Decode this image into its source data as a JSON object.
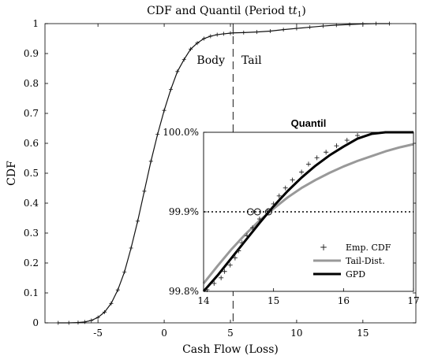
{
  "chart_data": [
    {
      "type": "line",
      "title": "CDF and Quantil (Period t",
      "title_subscript": "1",
      "title_close": ")",
      "xlabel": "Cash Flow (Loss)",
      "ylabel": "CDF",
      "xlim": [
        -9,
        19
      ],
      "ylim": [
        0,
        1
      ],
      "x_ticks": [
        -5,
        0,
        5,
        10,
        15
      ],
      "y_ticks": [
        0,
        0.1,
        0.2,
        0.3,
        0.4,
        0.5,
        0.6,
        0.7,
        0.8,
        0.9,
        1
      ],
      "threshold_x": 5.2,
      "region_labels": {
        "body": "Body",
        "tail": "Tail"
      },
      "series": [
        {
          "marker": "+",
          "x": [
            -8,
            -7.2,
            -6.5,
            -6,
            -5.5,
            -5,
            -4.5,
            -4,
            -3.5,
            -3,
            -2.5,
            -2,
            -1.5,
            -1,
            -0.5,
            0,
            0.5,
            1,
            1.5,
            2,
            2.5,
            3,
            3.5,
            4,
            4.5,
            5,
            5.2,
            6,
            7,
            8,
            9,
            10,
            11,
            12,
            13,
            14,
            15,
            16,
            17
          ],
          "y": [
            0,
            0,
            0.001,
            0.003,
            0.008,
            0.018,
            0.036,
            0.065,
            0.11,
            0.17,
            0.25,
            0.34,
            0.44,
            0.54,
            0.63,
            0.71,
            0.78,
            0.84,
            0.88,
            0.915,
            0.935,
            0.95,
            0.958,
            0.963,
            0.966,
            0.968,
            0.969,
            0.97,
            0.972,
            0.975,
            0.98,
            0.984,
            0.988,
            0.992,
            0.995,
            0.997,
            0.999,
            1,
            1
          ]
        }
      ]
    },
    {
      "type": "line",
      "title": "Quantil",
      "xlim": [
        14,
        17
      ],
      "ylim": [
        0.998,
        1.0
      ],
      "x_ticks": [
        14,
        15,
        16,
        17
      ],
      "y_ticks": [
        0.998,
        0.999,
        1.0
      ],
      "y_tick_labels": [
        "99.8%",
        "99.9%",
        "100.0%"
      ],
      "reference_y": 0.999,
      "circle_markers": [
        {
          "x": 14.67,
          "y": 0.999
        },
        {
          "x": 14.77,
          "y": 0.999
        },
        {
          "x": 14.93,
          "y": 0.999
        }
      ],
      "legend": "bottom-right",
      "series": [
        {
          "name": "Emp. CDF",
          "style": "markers",
          "color": "#222222",
          "x": [
            14.05,
            14.15,
            14.25,
            14.3,
            14.38,
            14.45,
            14.5,
            14.55,
            14.62,
            14.7,
            14.8,
            14.92,
            15.0,
            15.08,
            15.17,
            15.27,
            15.4,
            15.5,
            15.62,
            15.75,
            15.9,
            16.05,
            16.2
          ],
          "y": [
            0.99802,
            0.9981,
            0.99817,
            0.99825,
            0.99833,
            0.99842,
            0.99851,
            0.99861,
            0.9987,
            0.9988,
            0.99891,
            0.99901,
            0.9991,
            0.9992,
            0.9993,
            0.9994,
            0.9995,
            0.9996,
            0.99968,
            0.99975,
            0.99983,
            0.9999,
            0.99996
          ]
        },
        {
          "name": "Tail-Dist.",
          "style": "line",
          "color": "#999999",
          "x": [
            14,
            14.2,
            14.4,
            14.6,
            14.8,
            15,
            15.2,
            15.4,
            15.6,
            15.8,
            16,
            16.2,
            16.4,
            16.6,
            16.8,
            17
          ],
          "y": [
            0.9981,
            0.99832,
            0.99853,
            0.99872,
            0.99889,
            0.99904,
            0.99918,
            0.9993,
            0.9994,
            0.99949,
            0.99957,
            0.99964,
            0.9997,
            0.99976,
            0.99981,
            0.99985
          ]
        },
        {
          "name": "GPD",
          "style": "line",
          "color": "#000000",
          "x": [
            14,
            14.2,
            14.4,
            14.6,
            14.8,
            15,
            15.2,
            15.4,
            15.6,
            15.8,
            16,
            16.2,
            16.4,
            16.6,
            16.8,
            17
          ],
          "y": [
            0.99799,
            0.9982,
            0.99842,
            0.99864,
            0.99886,
            0.99907,
            0.99926,
            0.99943,
            0.99958,
            0.99971,
            0.99982,
            0.99992,
            0.99998,
            1.0,
            1.0,
            1.0
          ]
        }
      ]
    }
  ]
}
